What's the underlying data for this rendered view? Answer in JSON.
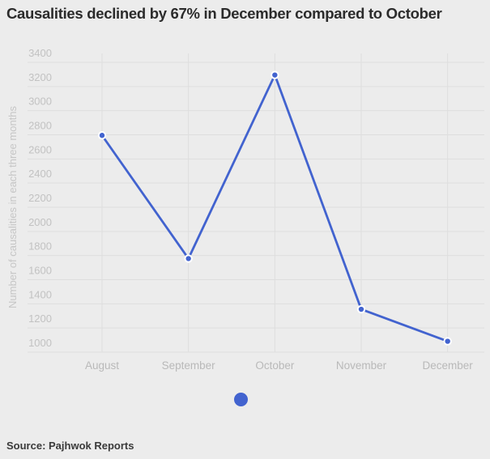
{
  "page": {
    "title": "Causalities declined by 67% in December compared to October",
    "source": "Source: Pajhwok Reports"
  },
  "colors": {
    "background": "#ececec",
    "accent_blue": "#4263cf",
    "grid_line": "#dedede",
    "y_tick_text": "#c2c2c2",
    "x_label_text": "#b9b9b9",
    "y_title_text": "#c6c6c6",
    "title_text": "#2b2b2b",
    "source_text": "#3a3a3a",
    "point_ring": "#ffffff"
  },
  "chart_data": {
    "type": "line",
    "title": "Causalities declined by 67% in December compared to October",
    "categories": [
      "August",
      "September",
      "October",
      "November",
      "December"
    ],
    "values": [
      2795,
      1775,
      3295,
      1355,
      1090
    ],
    "xlabel": "",
    "ylabel": "Number of causalities in each three months",
    "ylim": [
      1000,
      3400
    ],
    "ytick_interval": 200,
    "grid": true,
    "legend": {
      "visible": true,
      "label": "",
      "position": "bottom-center",
      "marker": "circle"
    },
    "source": "Source: Pajhwok Reports"
  }
}
